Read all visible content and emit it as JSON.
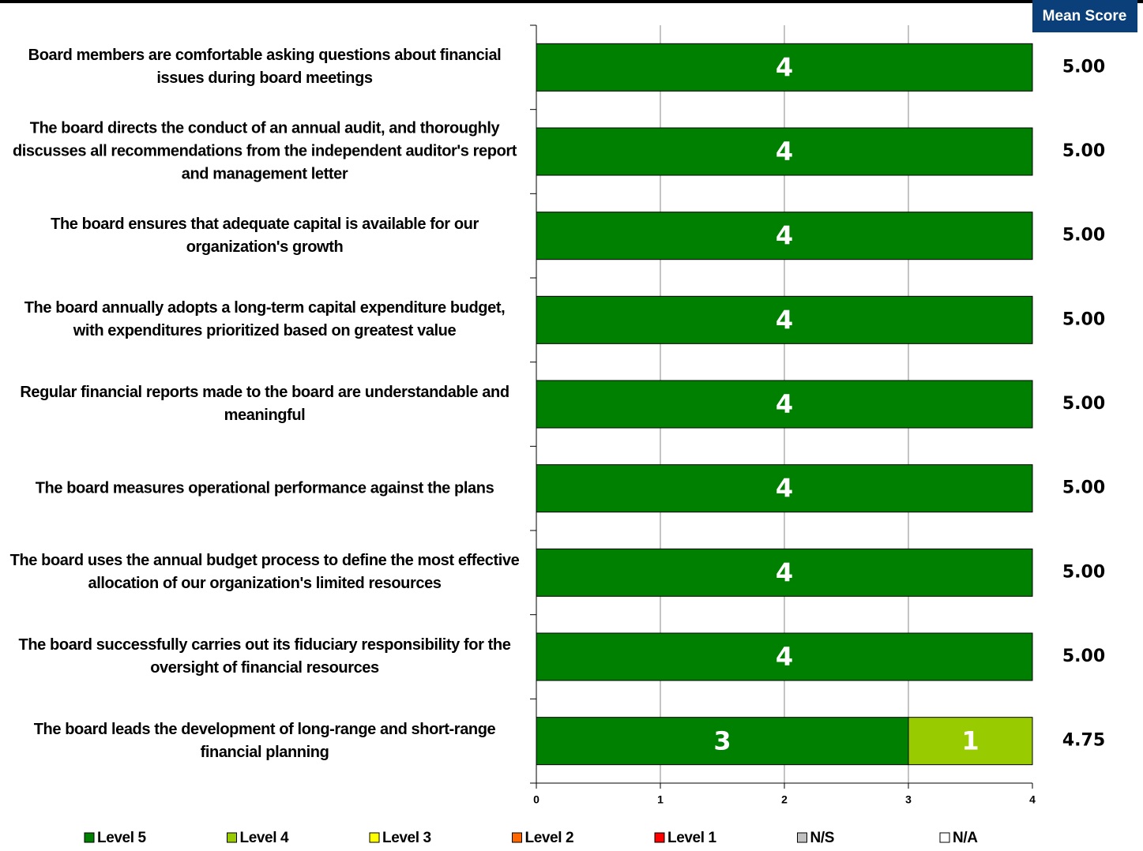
{
  "chart_data": {
    "type": "stacked_barh",
    "categories": [
      "Board members are comfortable asking questions about financial issues during board meetings",
      "The board directs the conduct of an annual audit, and thoroughly discusses all recommendations from the independent auditor's report and management letter",
      "The board ensures that adequate capital is available for our organization's growth",
      "The board annually adopts a long-term capital expenditure budget, with expenditures prioritized based on greatest value",
      "Regular financial reports made to the board are understandable and meaningful",
      "The board measures operational performance against the plans",
      "The board uses the annual budget process to define the most effective allocation of our organization's limited resources",
      "The board successfully carries out its fiduciary responsibility for the oversight of financial resources",
      "The board leads the development of long-range and short-range financial planning"
    ],
    "series": [
      {
        "name": "Level 5",
        "color": "#008000",
        "values": [
          4,
          4,
          4,
          4,
          4,
          4,
          4,
          4,
          3
        ]
      },
      {
        "name": "Level 4",
        "color": "#99cc00",
        "values": [
          0,
          0,
          0,
          0,
          0,
          0,
          0,
          0,
          1
        ]
      },
      {
        "name": "Level 3",
        "color": "#ffff00",
        "values": [
          0,
          0,
          0,
          0,
          0,
          0,
          0,
          0,
          0
        ]
      },
      {
        "name": "Level 2",
        "color": "#ff6600",
        "values": [
          0,
          0,
          0,
          0,
          0,
          0,
          0,
          0,
          0
        ]
      },
      {
        "name": "Level 1",
        "color": "#ff0000",
        "values": [
          0,
          0,
          0,
          0,
          0,
          0,
          0,
          0,
          0
        ]
      },
      {
        "name": "N/S",
        "color": "#c0c0c0",
        "values": [
          0,
          0,
          0,
          0,
          0,
          0,
          0,
          0,
          0
        ]
      },
      {
        "name": "N/A",
        "color": "#ffffff",
        "values": [
          0,
          0,
          0,
          0,
          0,
          0,
          0,
          0,
          0
        ]
      }
    ],
    "mean_score_title": "Mean Score",
    "mean_scores": [
      "5.00",
      "5.00",
      "5.00",
      "5.00",
      "5.00",
      "5.00",
      "5.00",
      "5.00",
      "4.75"
    ],
    "xlim": [
      0,
      4
    ],
    "xticks": [
      0,
      1,
      2,
      3,
      4
    ],
    "grid": true,
    "legend": "bottom"
  }
}
